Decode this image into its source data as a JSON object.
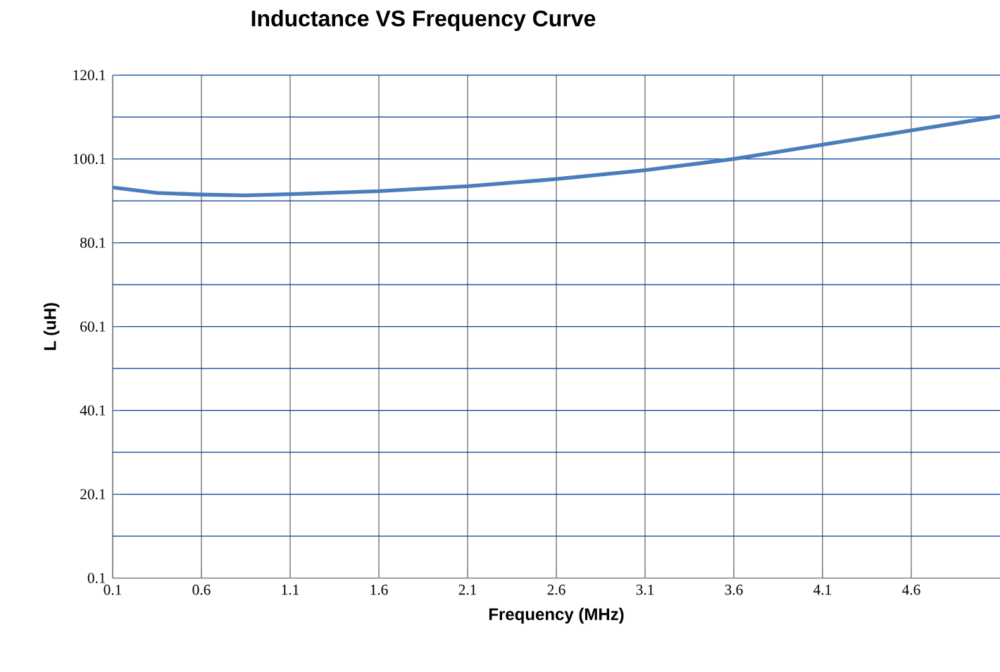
{
  "chart_data": {
    "type": "line",
    "title": "Inductance VS Frequency Curve",
    "xlabel": "Frequency (MHz)",
    "ylabel": "L (uH)",
    "x": [
      0.1,
      0.35,
      0.6,
      0.85,
      1.1,
      1.6,
      2.1,
      2.6,
      3.1,
      3.6,
      4.1,
      4.6,
      5.1
    ],
    "series": [
      {
        "color": "#4a7ebb",
        "values": [
          93.3,
          92.0,
          91.6,
          91.4,
          91.7,
          92.4,
          93.6,
          95.3,
          97.4,
          100.1,
          103.5,
          106.9,
          110.3
        ]
      }
    ],
    "xlim": [
      0.1,
      5.1
    ],
    "ylim": [
      0.1,
      120.1
    ],
    "xticks": [
      0.1,
      0.6,
      1.1,
      1.6,
      2.1,
      2.6,
      3.1,
      3.6,
      4.1,
      4.6
    ],
    "yticks": [
      0.1,
      {
        "value": 10.1,
        "label": null
      },
      20.1,
      {
        "value": 30.1,
        "label": null
      },
      40.1,
      {
        "value": 50.1,
        "label": null
      },
      60.1,
      {
        "value": 70.1,
        "label": null
      },
      80.1,
      {
        "value": 90.1,
        "label": null
      },
      100.1,
      {
        "value": 110.1,
        "label": null
      },
      120.1
    ],
    "grid": true,
    "marker": "none",
    "line_style": "solid"
  }
}
